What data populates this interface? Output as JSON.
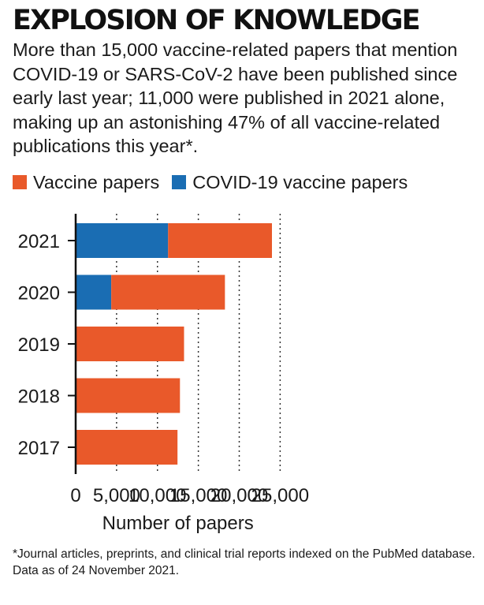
{
  "title": "EXPLOSION OF KNOWLEDGE",
  "subtitle": "More than 15,000 vaccine-related papers that mention COVID-19 or SARS-CoV-2 have been published since early last year; 11,000 were published in 2021 alone, making up an astonishing 47% of all vaccine-related publications this year*.",
  "legend": {
    "vaccine_label": "Vaccine papers",
    "covid_label": "COVID-19 vaccine papers"
  },
  "colors": {
    "vaccine": "#e9592a",
    "covid": "#1a6db3"
  },
  "footnote": "*Journal articles, preprints, and clinical trial reports indexed on the PubMed database. Data as of 24 November 2021.",
  "chart_data": {
    "type": "bar",
    "orientation": "horizontal",
    "stacked": true,
    "categories": [
      "2021",
      "2020",
      "2019",
      "2018",
      "2017"
    ],
    "series": [
      {
        "name": "COVID-19 vaccine papers",
        "values": [
          11300,
          4350,
          0,
          0,
          0
        ]
      },
      {
        "name": "Vaccine papers",
        "values": [
          12700,
          13900,
          13250,
          12750,
          12450
        ]
      }
    ],
    "totals": [
      24000,
      18250,
      13250,
      12750,
      12450
    ],
    "xlabel": "Number of papers",
    "ylabel": "",
    "xlim": [
      0,
      25000
    ],
    "xticks": [
      0,
      5000,
      10000,
      15000,
      20000,
      25000
    ],
    "xtick_labels": [
      "0",
      "5,000",
      "10,000",
      "15,000",
      "20,000",
      "25,000"
    ],
    "grid": "vertical dotted"
  }
}
